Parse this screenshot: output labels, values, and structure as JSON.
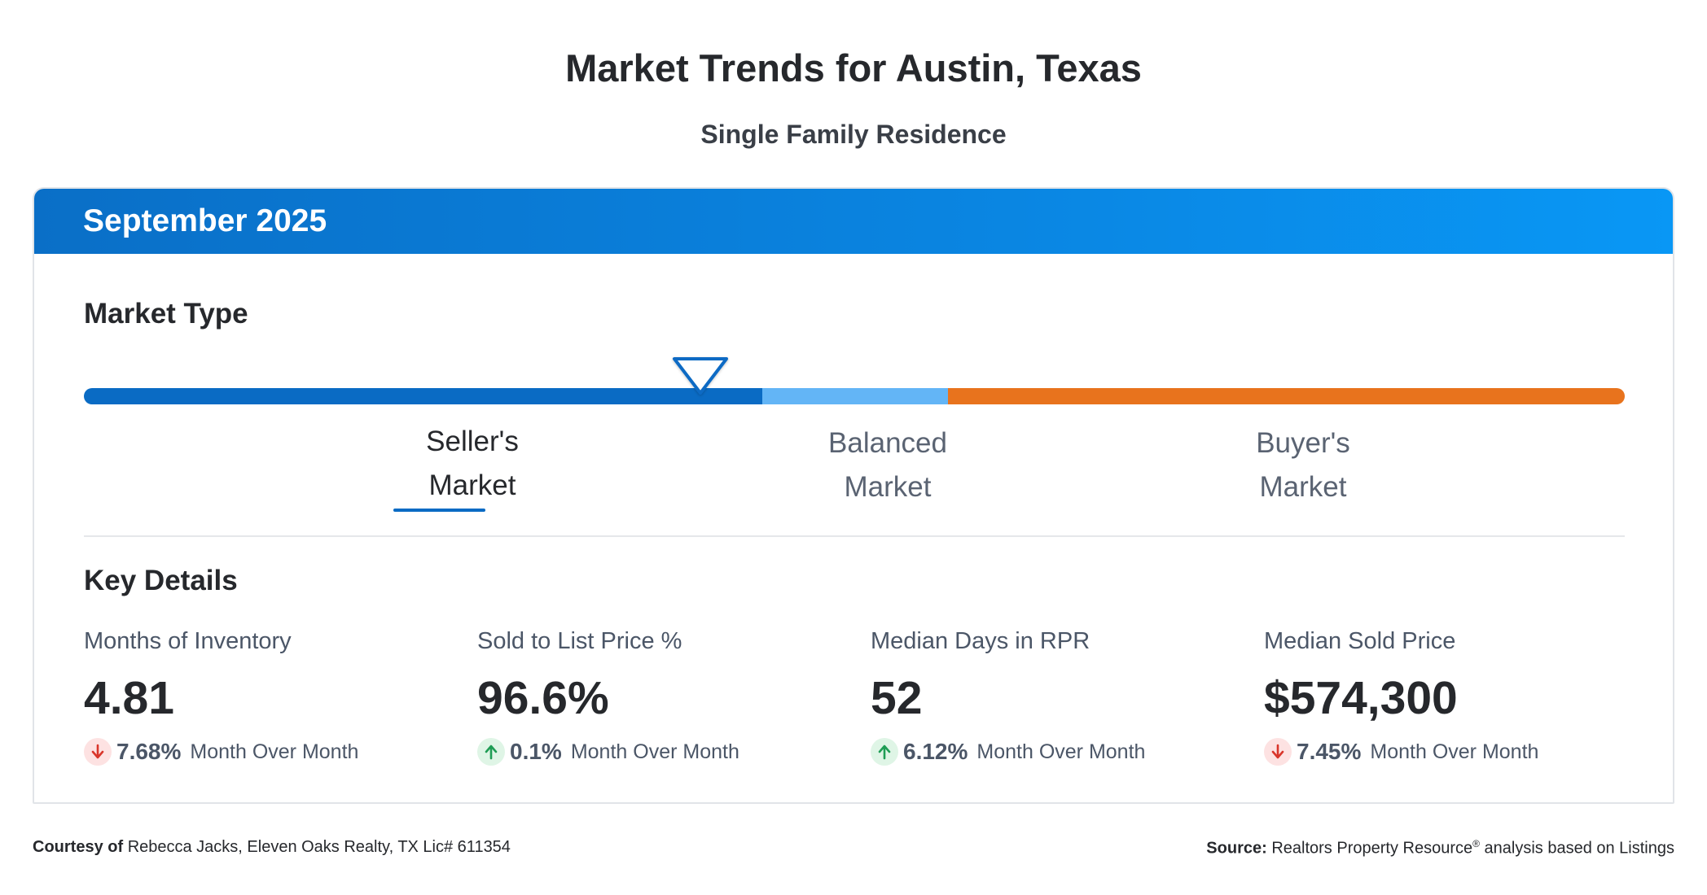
{
  "page": {
    "title": "Market Trends for Austin, Texas",
    "subtitle": "Single Family Residence"
  },
  "card": {
    "header_title": "September 2025",
    "market_type": {
      "title": "Market Type",
      "indicator_position_fraction": 0.4,
      "segments": [
        {
          "name": "seller",
          "color": "#0a6bc4"
        },
        {
          "name": "balanced",
          "color": "#63b5f6"
        },
        {
          "name": "buyer",
          "color": "#e8731d"
        }
      ],
      "labels": {
        "seller_line1": "Seller's",
        "seller_line2": "Market",
        "balanced_line1": "Balanced",
        "balanced_line2": "Market",
        "buyer_line1": "Buyer's",
        "buyer_line2": "Market"
      },
      "active": "seller"
    },
    "key_details": {
      "title": "Key Details",
      "stats": [
        {
          "label": "Months of Inventory",
          "value": "4.81",
          "direction": "down",
          "change": "7.68%",
          "change_text": "Month Over Month"
        },
        {
          "label": "Sold to List Price %",
          "value": "96.6%",
          "direction": "up",
          "change": "0.1%",
          "change_text": "Month Over Month"
        },
        {
          "label": "Median Days in RPR",
          "value": "52",
          "direction": "up",
          "change": "6.12%",
          "change_text": "Month Over Month"
        },
        {
          "label": "Median Sold Price",
          "value": "$574,300",
          "direction": "down",
          "change": "7.45%",
          "change_text": "Month Over Month"
        }
      ]
    }
  },
  "footer": {
    "courtesy_label": "Courtesy of",
    "courtesy_text": "Rebecca Jacks, Eleven Oaks Realty, TX Lic# 611354",
    "source_label": "Source:",
    "source_text_1": "Realtors Property Resource",
    "source_registered": "®",
    "source_text_2": " analysis based on Listings"
  },
  "colors": {
    "header_gradient_start": "#0a6fc7",
    "header_gradient_end": "#0997f5",
    "down_red": "#d9362b",
    "up_green": "#1f9d55"
  }
}
